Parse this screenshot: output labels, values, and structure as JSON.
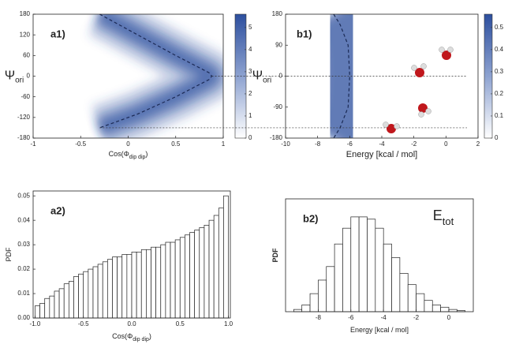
{
  "chart_data": [
    {
      "type": "heatmap",
      "panel_label": "a1)",
      "ylabel": [
        "Ψ",
        "ori"
      ],
      "xlabel": [
        "Cos(Φ",
        "dip dip",
        ")"
      ],
      "xlim": [
        -1,
        1
      ],
      "xticks": [
        -1,
        -0.5,
        0,
        0.5,
        1
      ],
      "ylim": [
        -180,
        180
      ],
      "yticks": [
        -180,
        -120,
        -60,
        0,
        60,
        120,
        180
      ],
      "color": "#2d4f9e",
      "colorbar": {
        "lim": [
          0,
          5.6
        ],
        "ticks": [
          0,
          1,
          2,
          3,
          4,
          5
        ]
      },
      "ridge": {
        "x": [
          -0.3,
          0.1,
          0.5,
          0.85,
          0.88,
          0.85,
          0.5,
          0.1,
          -0.3
        ],
        "y": [
          180,
          120,
          60,
          10,
          0,
          -10,
          -60,
          -110,
          -150
        ]
      },
      "reference_lines": [
        0,
        -150
      ]
    },
    {
      "type": "heatmap",
      "panel_label": "b1)",
      "ylabel": [
        "Ψ",
        "ori"
      ],
      "xlabel": [
        "Energy [kcal / mol]"
      ],
      "xlim": [
        -10,
        2
      ],
      "xticks": [
        -10,
        -8,
        -6,
        -4,
        -2,
        0,
        2
      ],
      "ylim": [
        -180,
        180
      ],
      "yticks": [
        -180,
        -90,
        0,
        90,
        180
      ],
      "color": "#2d4f9e",
      "colorbar": {
        "lim": [
          0,
          0.56
        ],
        "ticks": [
          0,
          0.1,
          0.2,
          0.3,
          0.4,
          0.5
        ]
      },
      "ridge": {
        "x": [
          -7,
          -6.6,
          -6.1,
          -6,
          -6.1,
          -6.6,
          -7
        ],
        "y": [
          180,
          150,
          90,
          0,
          -90,
          -150,
          -180
        ]
      }
    },
    {
      "type": "histogram",
      "panel_label": "a2)",
      "ylabel": [
        "PDF"
      ],
      "xlabel": [
        "Cos(Φ",
        "dip dip",
        ")"
      ],
      "xlim": [
        -1.02,
        1.02
      ],
      "xticks": [
        {
          "value": -1,
          "label": "-1.0"
        },
        {
          "value": -0.5,
          "label": "-0.5"
        },
        {
          "value": 0,
          "label": "0.0"
        },
        {
          "value": 0.5,
          "label": "0.5"
        },
        {
          "value": 1,
          "label": "1.0"
        }
      ],
      "ylim": [
        0,
        0.052
      ],
      "yticks": [
        {
          "value": 0,
          "label": "0.00"
        },
        {
          "value": 0.01,
          "label": "0.01"
        },
        {
          "value": 0.02,
          "label": "0.02"
        },
        {
          "value": 0.03,
          "label": "0.03"
        },
        {
          "value": 0.04,
          "label": "0.04"
        },
        {
          "value": 0.05,
          "label": "0.05"
        }
      ],
      "bins": [
        -1,
        -0.95,
        -0.9,
        -0.85,
        -0.8,
        -0.75,
        -0.7,
        -0.65,
        -0.6,
        -0.55,
        -0.5,
        -0.45,
        -0.4,
        -0.35,
        -0.3,
        -0.25,
        -0.2,
        -0.15,
        -0.1,
        -0.05,
        0,
        0.05,
        0.1,
        0.15,
        0.2,
        0.25,
        0.3,
        0.35,
        0.4,
        0.45,
        0.5,
        0.55,
        0.6,
        0.65,
        0.7,
        0.75,
        0.8,
        0.85,
        0.9,
        0.95,
        1
      ],
      "values": [
        0.005,
        0.006,
        0.008,
        0.009,
        0.011,
        0.012,
        0.014,
        0.015,
        0.017,
        0.018,
        0.019,
        0.02,
        0.021,
        0.022,
        0.023,
        0.024,
        0.025,
        0.025,
        0.026,
        0.026,
        0.027,
        0.027,
        0.028,
        0.028,
        0.029,
        0.029,
        0.03,
        0.031,
        0.031,
        0.032,
        0.033,
        0.034,
        0.035,
        0.036,
        0.037,
        0.038,
        0.04,
        0.042,
        0.045,
        0.05
      ]
    },
    {
      "type": "histogram",
      "panel_label": "b2)",
      "annotation": [
        "E",
        "tot"
      ],
      "ylabel": [
        "PDF"
      ],
      "xlabel": [
        "Energy [kcal / mol]"
      ],
      "xlim": [
        -10,
        1.5
      ],
      "xticks": [
        -8,
        -6,
        -4,
        -2,
        0
      ],
      "ylim": [
        0,
        0.5
      ],
      "bins": [
        -9.5,
        -9,
        -8.5,
        -8,
        -7.5,
        -7,
        -6.5,
        -6,
        -5.5,
        -5,
        -4.5,
        -4,
        -3.5,
        -3,
        -2.5,
        -2,
        -1.5,
        -1,
        -0.5,
        0,
        0.5,
        1
      ],
      "values": [
        0.01,
        0.03,
        0.08,
        0.14,
        0.2,
        0.3,
        0.37,
        0.42,
        0.42,
        0.41,
        0.37,
        0.3,
        0.24,
        0.17,
        0.12,
        0.08,
        0.05,
        0.03,
        0.02,
        0.01,
        0.005
      ]
    }
  ]
}
